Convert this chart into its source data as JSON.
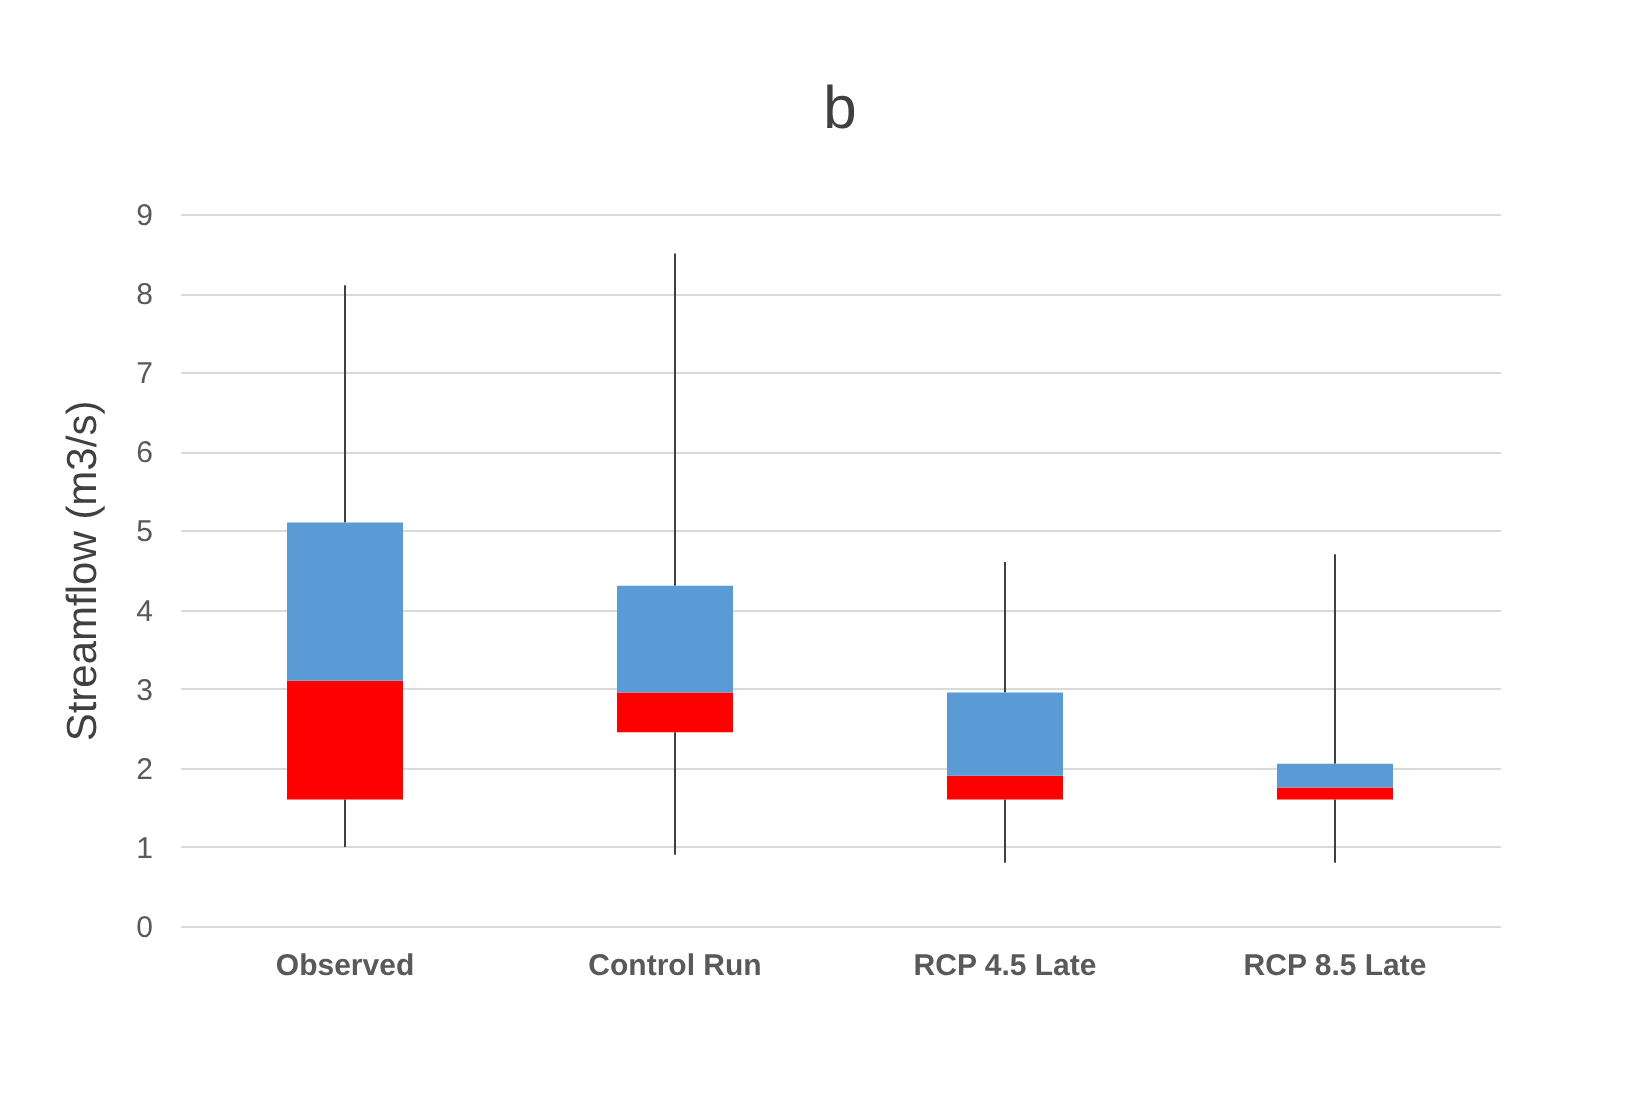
{
  "chart_data": {
    "type": "box",
    "title": "b",
    "ylabel": "Streamflow (m3/s)",
    "categories": [
      "Observed",
      "Control Run",
      "RCP 4.5 Late",
      "RCP 8.5 Late"
    ],
    "boxes": [
      {
        "low": 1.0,
        "q1": 1.6,
        "median": 3.1,
        "q3": 5.1,
        "high": 8.1
      },
      {
        "low": 0.9,
        "q1": 2.45,
        "median": 2.95,
        "q3": 4.3,
        "high": 8.5
      },
      {
        "low": 0.8,
        "q1": 1.6,
        "median": 1.9,
        "q3": 2.95,
        "high": 4.6
      },
      {
        "low": 0.8,
        "q1": 1.6,
        "median": 1.75,
        "q3": 2.05,
        "high": 4.7
      }
    ],
    "colors": [
      [
        "#ff0000",
        "#5b9bd5"
      ],
      [
        "#ff0000",
        "#5b9bd5"
      ],
      [
        "#ff0000",
        "#5b9bd5"
      ],
      [
        "#ff0000",
        "#5b9bd5"
      ]
    ],
    "ylim": [
      0,
      9
    ],
    "yticks": [
      0,
      1,
      2,
      3,
      4,
      5,
      6,
      7,
      8,
      9
    ],
    "grid": "y"
  }
}
